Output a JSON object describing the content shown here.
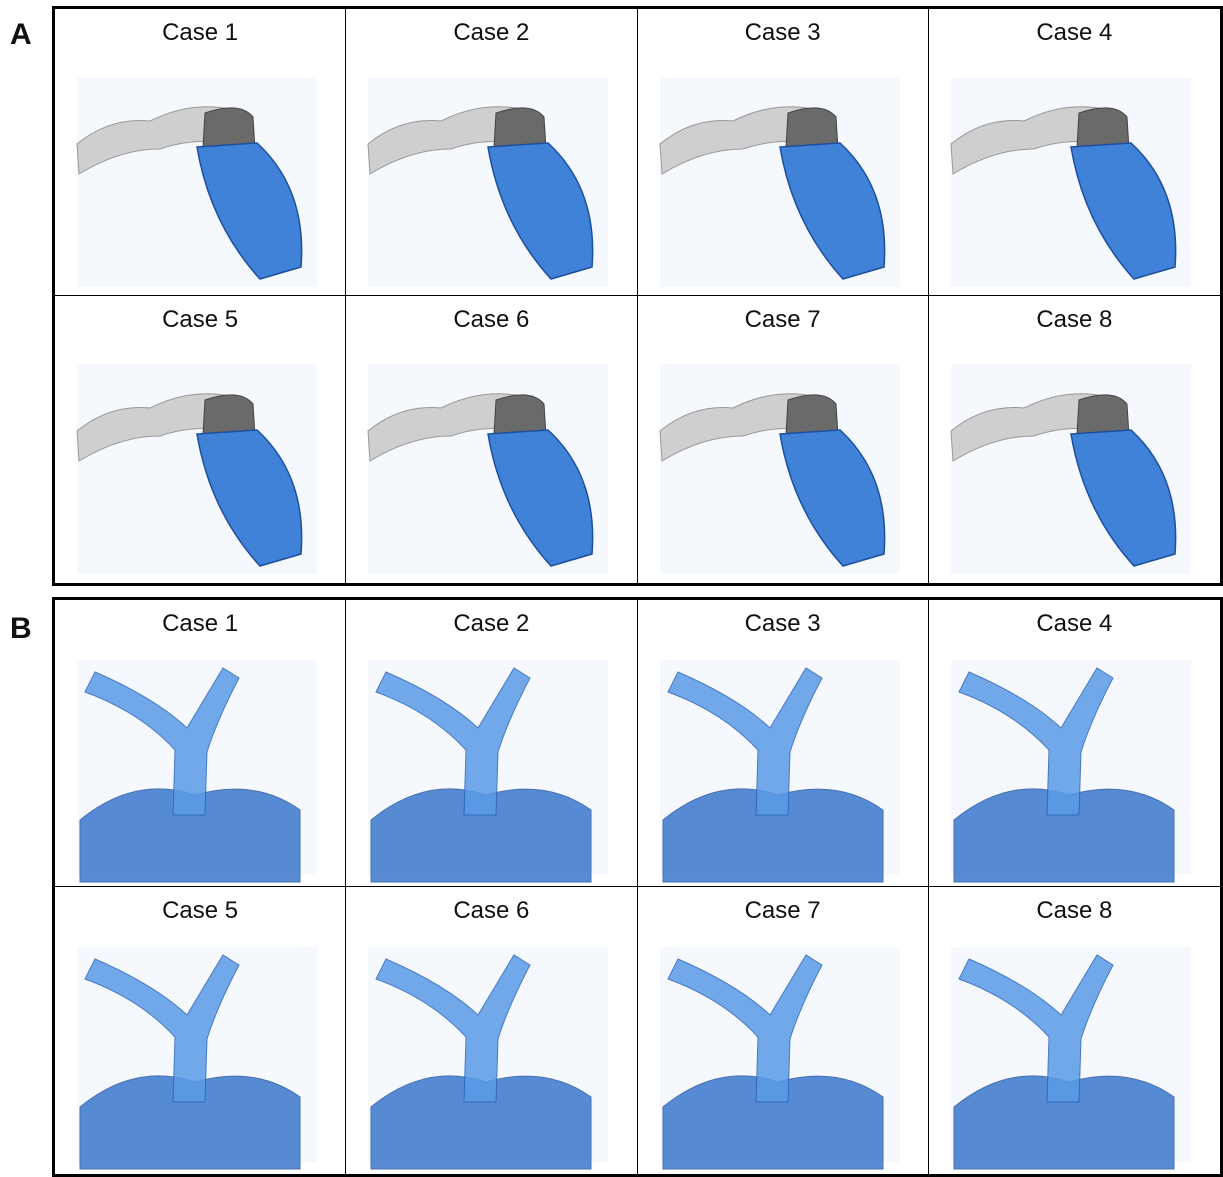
{
  "panels": [
    {
      "label": "A",
      "cases": [
        "Case 1",
        "Case 2",
        "Case 3",
        "Case 4",
        "Case 5",
        "Case 6",
        "Case 7",
        "Case 8"
      ]
    },
    {
      "label": "B",
      "cases": [
        "Case 1",
        "Case 2",
        "Case 3",
        "Case 4",
        "Case 5",
        "Case 6",
        "Case 7",
        "Case 8"
      ]
    }
  ]
}
